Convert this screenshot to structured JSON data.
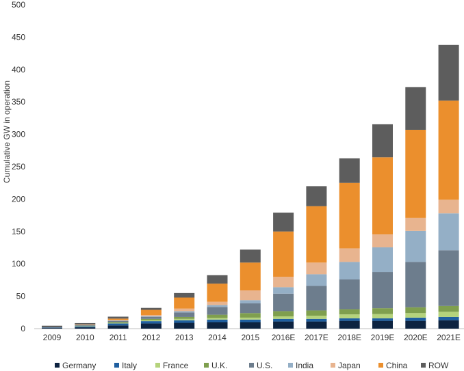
{
  "chart_data": {
    "type": "bar",
    "stacked": true,
    "title": "",
    "xlabel": "",
    "ylabel": "Cumulative GW in operation",
    "ylim": [
      0,
      500
    ],
    "yticks": [
      0,
      50,
      100,
      150,
      200,
      250,
      300,
      350,
      400,
      450,
      500
    ],
    "grid": false,
    "legend_position": "bottom",
    "categories": [
      "2009",
      "2010",
      "2011",
      "2012",
      "2013",
      "2014",
      "2015",
      "2016E",
      "2017E",
      "2018E",
      "2019E",
      "2020E",
      "2021E"
    ],
    "series": [
      {
        "name": "Germany",
        "color": "#0d2340",
        "values": [
          1,
          2,
          5,
          8,
          9,
          10,
          10,
          11,
          11,
          12,
          12,
          12,
          13
        ]
      },
      {
        "name": "Italy",
        "color": "#1f5fa0",
        "values": [
          0.5,
          1.5,
          3,
          3.5,
          4,
          4,
          4,
          4,
          4,
          4,
          4,
          5,
          5
        ]
      },
      {
        "name": "France",
        "color": "#b5d37c",
        "values": [
          0,
          0.5,
          1,
          1.5,
          2,
          2.5,
          3,
          4,
          5,
          6,
          6.5,
          7,
          8
        ]
      },
      {
        "name": "U.K.",
        "color": "#7f9f4e",
        "values": [
          0,
          0.5,
          1,
          2,
          3,
          5,
          7,
          8,
          8,
          8,
          9,
          9,
          9
        ]
      },
      {
        "name": "U.S.",
        "color": "#6d7d8d",
        "values": [
          0.5,
          1,
          2,
          3,
          7,
          12,
          15,
          27,
          38,
          46,
          56,
          70,
          86
        ]
      },
      {
        "name": "India",
        "color": "#94afc6",
        "values": [
          0,
          0,
          0.5,
          1,
          2,
          3,
          5,
          10,
          18,
          27,
          38,
          48,
          57
        ]
      },
      {
        "name": "Japan",
        "color": "#e8b48f",
        "values": [
          0,
          0.5,
          1,
          2,
          4,
          5,
          15,
          16,
          18,
          21,
          20,
          20,
          21
        ]
      },
      {
        "name": "China",
        "color": "#eb8f2d",
        "values": [
          0,
          0.5,
          2,
          8,
          17,
          28,
          43,
          70,
          87,
          101,
          119,
          136,
          153
        ]
      },
      {
        "name": "ROW",
        "color": "#5d5d5d",
        "values": [
          2.5,
          2,
          3,
          3,
          7,
          13,
          20,
          29,
          31,
          38,
          51,
          66,
          86
        ]
      }
    ]
  }
}
